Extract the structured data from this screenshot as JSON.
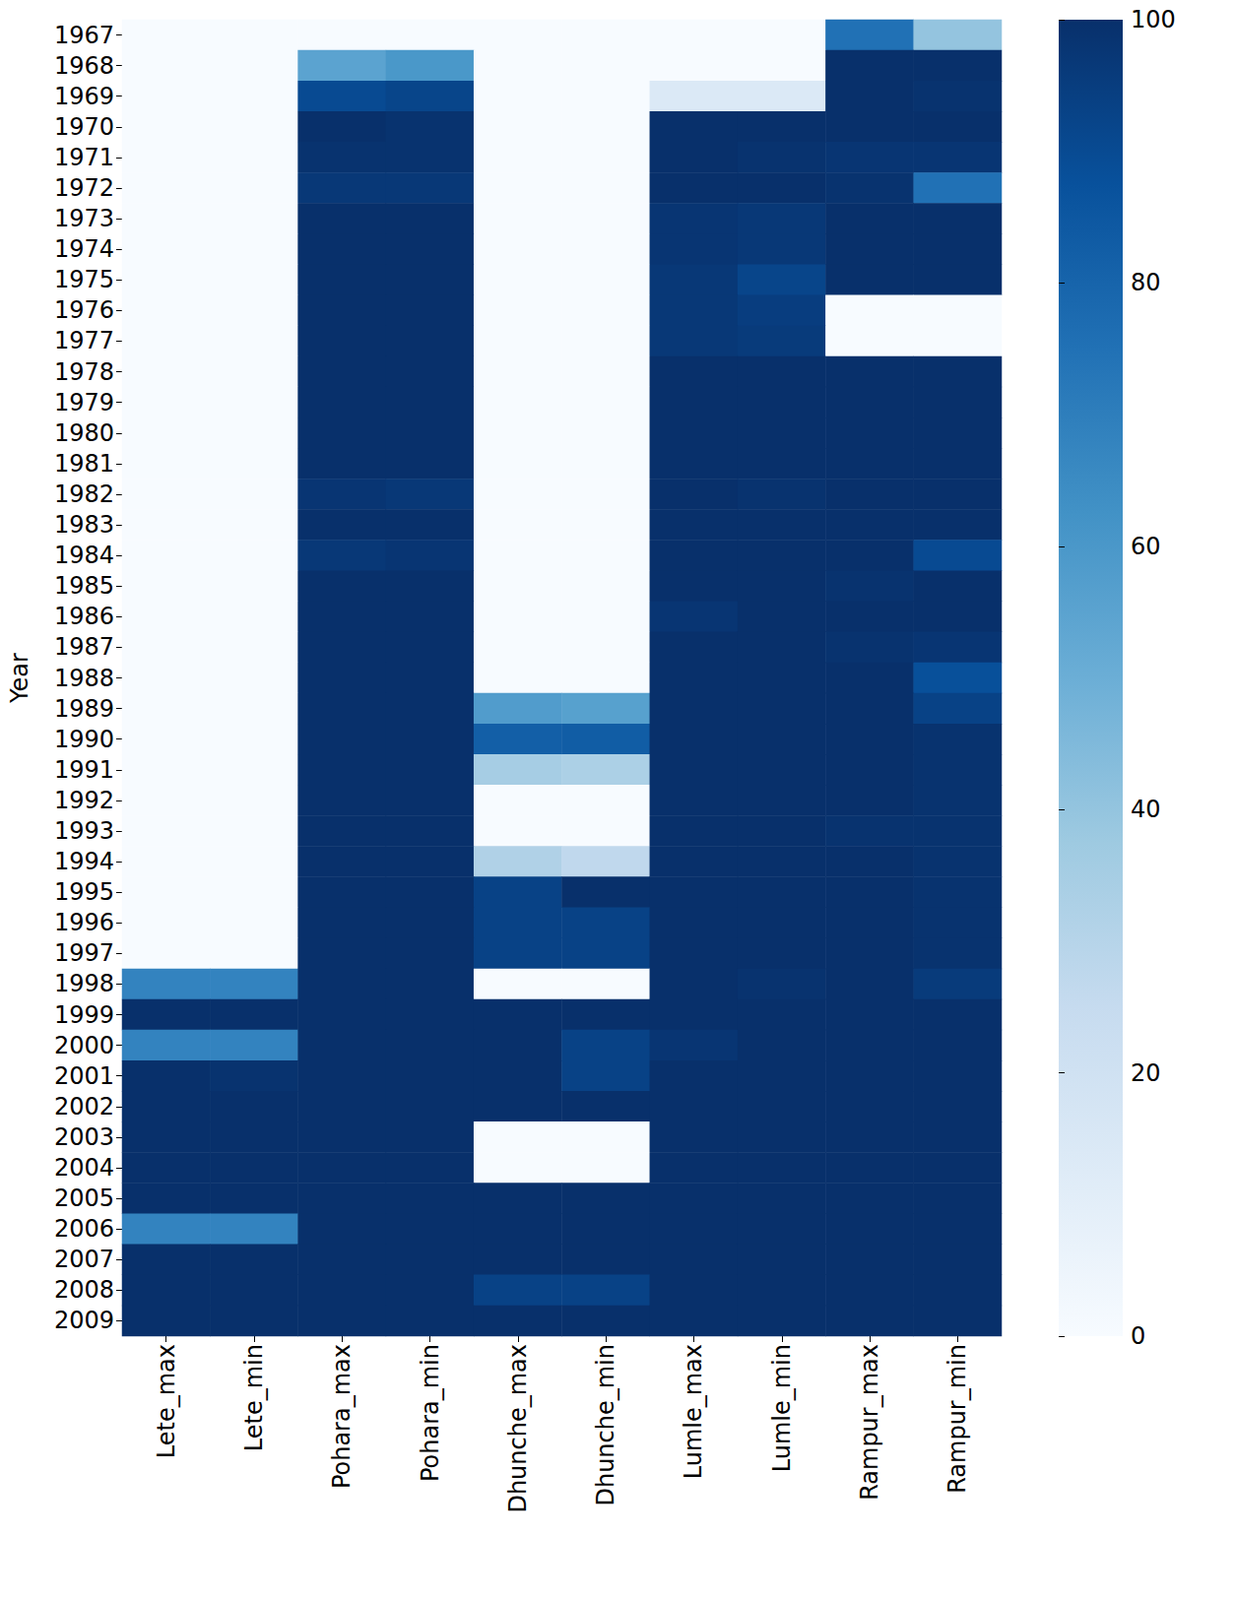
{
  "chart_data": {
    "type": "heatmap",
    "y_label": "Year",
    "x": [
      "Lete_max",
      "Lete_min",
      "Pohara_max",
      "Pohara_min",
      "Dhunche_max",
      "Dhunche_min",
      "Lumle_max",
      "Lumle_min",
      "Rampur_max",
      "Rampur_min"
    ],
    "y": [
      "1967",
      "1968",
      "1969",
      "1970",
      "1971",
      "1972",
      "1973",
      "1974",
      "1975",
      "1976",
      "1977",
      "1978",
      "1979",
      "1980",
      "1981",
      "1982",
      "1983",
      "1984",
      "1985",
      "1986",
      "1987",
      "1988",
      "1989",
      "1990",
      "1991",
      "1992",
      "1993",
      "1994",
      "1995",
      "1996",
      "1997",
      "1998",
      "1999",
      "2000",
      "2001",
      "2002",
      "2003",
      "2004",
      "2005",
      "2006",
      "2007",
      "2008",
      "2009"
    ],
    "values": [
      [
        0,
        0,
        0,
        0,
        0,
        0,
        0,
        0,
        75,
        40
      ],
      [
        0,
        0,
        55,
        60,
        0,
        0,
        0,
        0,
        100,
        100
      ],
      [
        0,
        0,
        90,
        92,
        0,
        0,
        14,
        14,
        100,
        99
      ],
      [
        0,
        0,
        100,
        99,
        0,
        0,
        100,
        100,
        100,
        100
      ],
      [
        0,
        0,
        99,
        99,
        0,
        0,
        100,
        99,
        98,
        98
      ],
      [
        0,
        0,
        97,
        97,
        0,
        0,
        100,
        100,
        99,
        75
      ],
      [
        0,
        0,
        100,
        100,
        0,
        0,
        98,
        97,
        100,
        100
      ],
      [
        0,
        0,
        100,
        100,
        0,
        0,
        98,
        97,
        100,
        100
      ],
      [
        0,
        0,
        100,
        100,
        0,
        0,
        97,
        92,
        100,
        100
      ],
      [
        0,
        0,
        100,
        100,
        0,
        0,
        97,
        95,
        0,
        0
      ],
      [
        0,
        0,
        100,
        100,
        0,
        0,
        97,
        96,
        0,
        0
      ],
      [
        0,
        0,
        100,
        100,
        0,
        0,
        100,
        100,
        100,
        100
      ],
      [
        0,
        0,
        100,
        100,
        0,
        0,
        100,
        100,
        100,
        100
      ],
      [
        0,
        0,
        100,
        100,
        0,
        0,
        100,
        100,
        100,
        100
      ],
      [
        0,
        0,
        100,
        100,
        0,
        0,
        100,
        100,
        100,
        100
      ],
      [
        0,
        0,
        98,
        97,
        0,
        0,
        100,
        99,
        100,
        100
      ],
      [
        0,
        0,
        100,
        100,
        0,
        0,
        100,
        100,
        100,
        100
      ],
      [
        0,
        0,
        97,
        98,
        0,
        0,
        100,
        100,
        100,
        90
      ],
      [
        0,
        0,
        100,
        100,
        0,
        0,
        100,
        100,
        99,
        100
      ],
      [
        0,
        0,
        100,
        100,
        0,
        0,
        98,
        100,
        100,
        100
      ],
      [
        0,
        0,
        100,
        100,
        0,
        0,
        100,
        100,
        99,
        98
      ],
      [
        0,
        0,
        100,
        100,
        0,
        0,
        100,
        100,
        100,
        88
      ],
      [
        0,
        0,
        100,
        100,
        58,
        56,
        100,
        100,
        100,
        93
      ],
      [
        0,
        0,
        100,
        100,
        82,
        83,
        100,
        100,
        100,
        99
      ],
      [
        0,
        0,
        100,
        100,
        35,
        33,
        100,
        100,
        100,
        99
      ],
      [
        0,
        0,
        100,
        100,
        0,
        0,
        100,
        100,
        100,
        99
      ],
      [
        0,
        0,
        100,
        100,
        0,
        0,
        100,
        100,
        99,
        99
      ],
      [
        0,
        0,
        100,
        100,
        32,
        27,
        100,
        100,
        100,
        99
      ],
      [
        0,
        0,
        100,
        100,
        93,
        100,
        100,
        100,
        100,
        99
      ],
      [
        0,
        0,
        100,
        100,
        93,
        93,
        100,
        100,
        100,
        99
      ],
      [
        0,
        0,
        100,
        100,
        93,
        93,
        100,
        100,
        100,
        99
      ],
      [
        68,
        68,
        100,
        100,
        0,
        0,
        100,
        99,
        100,
        96
      ],
      [
        100,
        100,
        100,
        100,
        100,
        100,
        100,
        100,
        100,
        100
      ],
      [
        68,
        68,
        100,
        100,
        100,
        93,
        98,
        100,
        100,
        100
      ],
      [
        100,
        99,
        100,
        100,
        100,
        93,
        100,
        100,
        100,
        100
      ],
      [
        100,
        100,
        100,
        100,
        100,
        100,
        100,
        100,
        100,
        100
      ],
      [
        100,
        100,
        100,
        100,
        0,
        0,
        100,
        100,
        100,
        100
      ],
      [
        100,
        100,
        100,
        100,
        0,
        0,
        100,
        100,
        100,
        100
      ],
      [
        100,
        100,
        100,
        100,
        100,
        100,
        100,
        100,
        100,
        100
      ],
      [
        68,
        68,
        100,
        100,
        100,
        100,
        100,
        100,
        100,
        100
      ],
      [
        100,
        100,
        100,
        100,
        100,
        100,
        100,
        100,
        100,
        100
      ],
      [
        100,
        100,
        100,
        100,
        93,
        93,
        100,
        100,
        100,
        100
      ],
      [
        100,
        100,
        100,
        100,
        100,
        100,
        100,
        100,
        100,
        100
      ]
    ],
    "colorbar_range": [
      0,
      100
    ],
    "colorbar_ticks": [
      0,
      20,
      40,
      60,
      80,
      100
    ]
  }
}
